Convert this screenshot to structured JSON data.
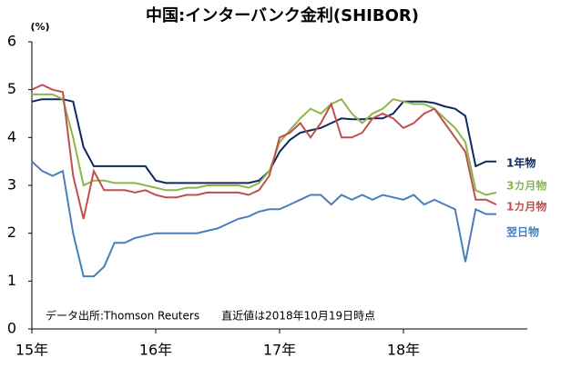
{
  "chart_data": {
    "type": "line",
    "title": "中国:インターバンク金利(SHIBOR)",
    "y_label": "(%)",
    "annotation": "データ出所:Thomson Reuters　　直近値は2018年10月19日時点",
    "x": [
      2015,
      2015.083,
      2015.167,
      2015.25,
      2015.333,
      2015.417,
      2015.5,
      2015.583,
      2015.667,
      2015.75,
      2015.833,
      2015.917,
      2016,
      2016.083,
      2016.167,
      2016.25,
      2016.333,
      2016.417,
      2016.5,
      2016.583,
      2016.667,
      2016.75,
      2016.833,
      2016.917,
      2017,
      2017.083,
      2017.167,
      2017.25,
      2017.333,
      2017.417,
      2017.5,
      2017.583,
      2017.667,
      2017.75,
      2017.833,
      2017.917,
      2018,
      2018.083,
      2018.167,
      2018.25,
      2018.333,
      2018.417,
      2018.5,
      2018.583,
      2018.667,
      2018.75
    ],
    "series": [
      {
        "name": "1年物",
        "color": "#0b2a5e",
        "values": [
          4.75,
          4.8,
          4.8,
          4.8,
          4.75,
          3.8,
          3.4,
          3.4,
          3.4,
          3.4,
          3.4,
          3.4,
          3.1,
          3.05,
          3.05,
          3.05,
          3.05,
          3.05,
          3.05,
          3.05,
          3.05,
          3.05,
          3.1,
          3.3,
          3.7,
          3.95,
          4.1,
          4.15,
          4.2,
          4.3,
          4.4,
          4.38,
          4.38,
          4.4,
          4.4,
          4.5,
          4.75,
          4.75,
          4.75,
          4.72,
          4.65,
          4.6,
          4.45,
          3.4,
          3.5,
          3.5
        ]
      },
      {
        "name": "3カ月物",
        "color": "#8db54a",
        "values": [
          4.9,
          4.9,
          4.9,
          4.8,
          4.0,
          3.0,
          3.1,
          3.1,
          3.05,
          3.05,
          3.05,
          3.0,
          2.95,
          2.9,
          2.9,
          2.95,
          2.95,
          3.0,
          3.0,
          3.0,
          3.0,
          2.95,
          3.05,
          3.3,
          3.9,
          4.15,
          4.4,
          4.6,
          4.5,
          4.7,
          4.8,
          4.5,
          4.3,
          4.5,
          4.6,
          4.8,
          4.75,
          4.7,
          4.7,
          4.6,
          4.4,
          4.2,
          3.9,
          2.9,
          2.8,
          2.85
        ]
      },
      {
        "name": "1カ月物",
        "color": "#c0504d",
        "values": [
          5.0,
          5.1,
          5.0,
          4.95,
          3.2,
          2.3,
          3.3,
          2.9,
          2.9,
          2.9,
          2.85,
          2.9,
          2.8,
          2.75,
          2.75,
          2.8,
          2.8,
          2.85,
          2.85,
          2.85,
          2.85,
          2.8,
          2.9,
          3.2,
          4.0,
          4.1,
          4.3,
          4.0,
          4.3,
          4.7,
          4.0,
          4.0,
          4.1,
          4.4,
          4.5,
          4.4,
          4.2,
          4.3,
          4.5,
          4.6,
          4.3,
          4.0,
          3.7,
          2.7,
          2.7,
          2.6
        ]
      },
      {
        "name": "翌日物",
        "color": "#4a7ebb",
        "values": [
          3.5,
          3.3,
          3.2,
          3.3,
          2.0,
          1.1,
          1.1,
          1.3,
          1.8,
          1.8,
          1.9,
          1.95,
          2.0,
          2.0,
          2.0,
          2.0,
          2.0,
          2.05,
          2.1,
          2.2,
          2.3,
          2.35,
          2.45,
          2.5,
          2.5,
          2.6,
          2.7,
          2.8,
          2.8,
          2.6,
          2.8,
          2.7,
          2.8,
          2.7,
          2.8,
          2.75,
          2.7,
          2.8,
          2.6,
          2.7,
          2.6,
          2.5,
          1.4,
          2.5,
          2.4,
          2.4
        ]
      }
    ],
    "xlim": [
      2015,
      2019
    ],
    "xticks": [
      {
        "value": 2015,
        "label": "15年"
      },
      {
        "value": 2016,
        "label": "16年"
      },
      {
        "value": 2017,
        "label": "17年"
      },
      {
        "value": 2018,
        "label": "18年"
      }
    ],
    "ylim": [
      0,
      6
    ],
    "yticks": [
      0,
      1,
      2,
      3,
      4,
      5,
      6
    ]
  }
}
